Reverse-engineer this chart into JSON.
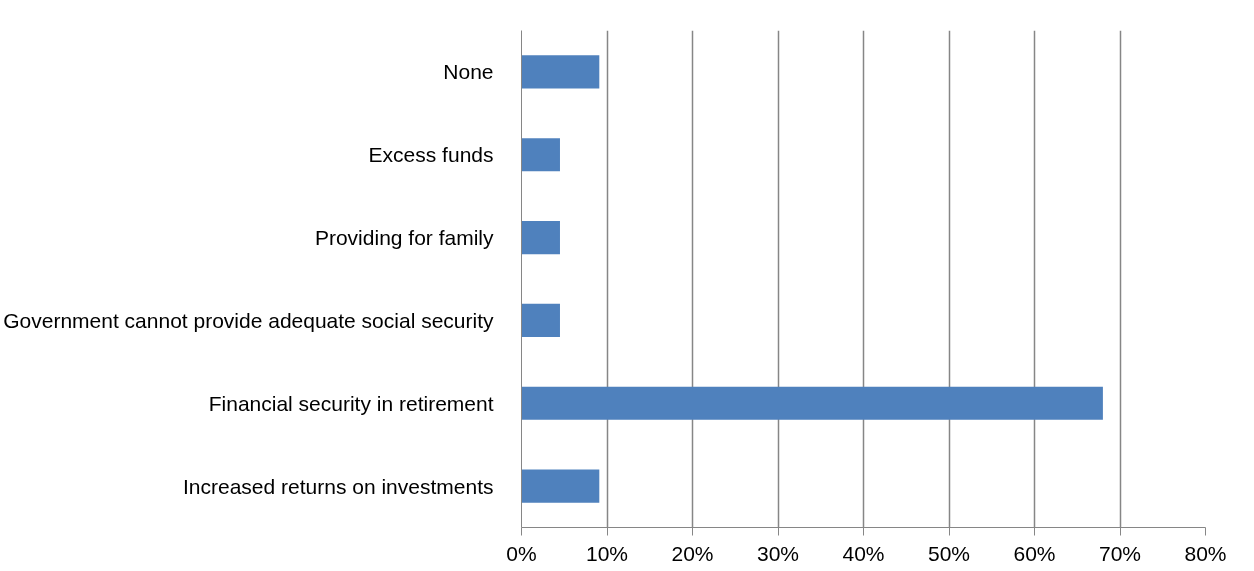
{
  "chart_data": {
    "type": "bar",
    "orientation": "horizontal",
    "categories": [
      "None",
      "Excess funds",
      "Providing for family",
      "Government cannot provide adequate social security",
      "Financial security in retirement",
      "Increased returns on investments"
    ],
    "values": [
      9.1,
      4.5,
      4.5,
      4.5,
      68,
      9.1
    ],
    "color": "#4f81bd",
    "xlim": [
      0,
      80
    ],
    "xticks": [
      {
        "value": 0,
        "label": "0%"
      },
      {
        "value": 10,
        "label": "10%"
      },
      {
        "value": 20,
        "label": "20%"
      },
      {
        "value": 30,
        "label": "30%"
      },
      {
        "value": 40,
        "label": "40%"
      },
      {
        "value": 50,
        "label": "50%"
      },
      {
        "value": 60,
        "label": "60%"
      },
      {
        "value": 70,
        "label": "70%"
      },
      {
        "value": 80,
        "label": "80%"
      }
    ],
    "grid": "x"
  }
}
